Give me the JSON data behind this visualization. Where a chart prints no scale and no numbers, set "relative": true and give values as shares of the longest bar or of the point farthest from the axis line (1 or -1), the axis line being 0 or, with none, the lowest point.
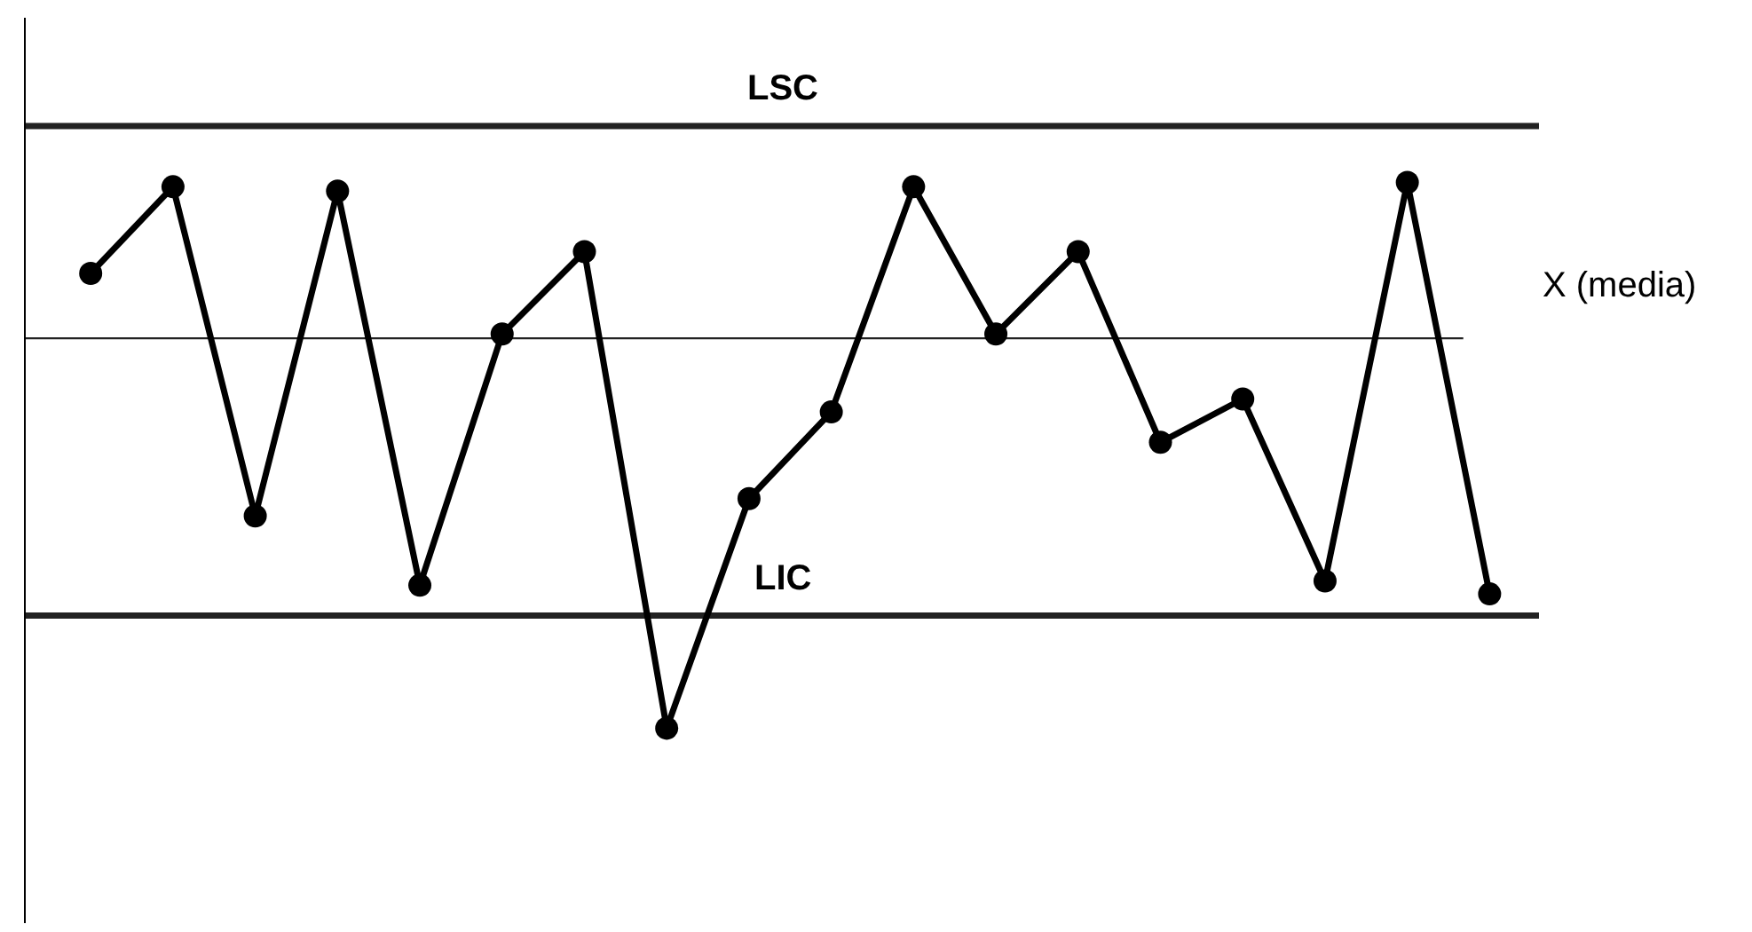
{
  "chart_data": {
    "type": "line",
    "relative": true,
    "marker": "circle",
    "line_style": "solid",
    "grid": false,
    "categories": [
      null,
      null,
      null,
      null,
      null,
      null,
      null,
      null,
      null,
      null,
      null,
      null,
      null,
      null,
      null,
      null,
      null,
      null
    ],
    "series": [
      {
        "color": "#000000",
        "values": [
          0.79,
          0.99,
          0.23,
          0.98,
          0.07,
          0.65,
          0.84,
          -0.26,
          0.27,
          0.47,
          0.99,
          0.65,
          0.84,
          0.4,
          0.5,
          0.08,
          1,
          0.05
        ]
      }
    ],
    "ref_lines": [
      {
        "axis": "y",
        "value": 1.13,
        "label": "LSC",
        "color": "#222222"
      },
      {
        "axis": "y",
        "value": 0.64,
        "label": "X (media)",
        "color": "#222222"
      },
      {
        "axis": "y",
        "value": 0,
        "label": "LIC",
        "color": "#222222"
      }
    ]
  }
}
